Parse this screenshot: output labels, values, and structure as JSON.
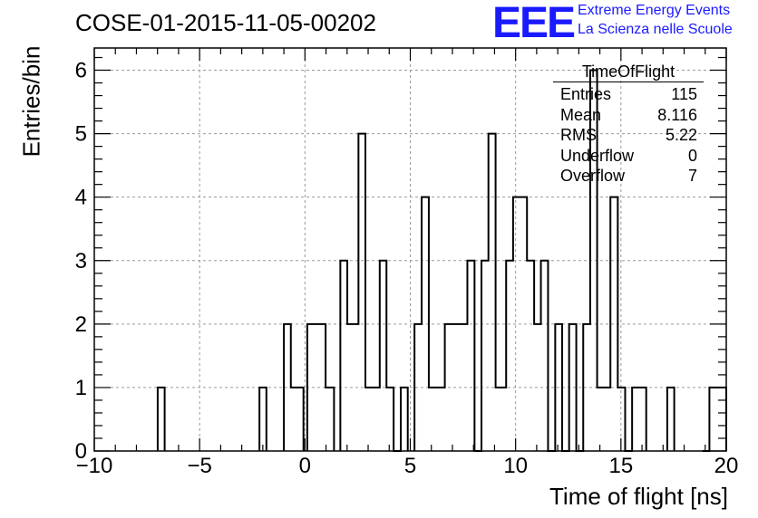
{
  "header": {
    "title": "COSE-01-2015-11-05-00202",
    "logo_text": "EEE",
    "brand_line1": "Extreme Energy Events",
    "brand_line2": "La Scienza nelle Scuole"
  },
  "stats_box": {
    "title": "TimeOfFlight",
    "rows": [
      {
        "label": "Entries",
        "value": "115"
      },
      {
        "label": "Mean",
        "value": "8.116"
      },
      {
        "label": "RMS",
        "value": "5.22"
      },
      {
        "label": "Underflow",
        "value": "0"
      },
      {
        "label": "Overflow",
        "value": "7"
      }
    ]
  },
  "colors": {
    "line": "#000000",
    "grid": "#9a9a9a",
    "logo": "#1a1aff"
  },
  "chart_data": {
    "type": "histogram",
    "title": "COSE-01-2015-11-05-00202",
    "xlabel": "Time of flight [ns]",
    "ylabel": "Entries/bin",
    "xlim": [
      -10,
      20
    ],
    "ylim": [
      0,
      6.35
    ],
    "bin_width": 0.3333,
    "x_ticks": [
      -10,
      -5,
      0,
      5,
      10,
      15,
      20
    ],
    "y_ticks": [
      0,
      1,
      2,
      3,
      4,
      5,
      6
    ],
    "grid": true,
    "bins": [
      {
        "x0": -6.99,
        "x1": -6.66,
        "y": 1
      },
      {
        "x0": -2.16,
        "x1": -1.83,
        "y": 1
      },
      {
        "x0": -1.0,
        "x1": -0.67,
        "y": 2
      },
      {
        "x0": -0.67,
        "x1": -0.07,
        "y": 1
      },
      {
        "x0": 0.11,
        "x1": 0.98,
        "y": 2
      },
      {
        "x0": 0.98,
        "x1": 1.38,
        "y": 1
      },
      {
        "x0": 1.68,
        "x1": 2.01,
        "y": 3
      },
      {
        "x0": 2.01,
        "x1": 2.54,
        "y": 2
      },
      {
        "x0": 2.54,
        "x1": 2.87,
        "y": 5
      },
      {
        "x0": 2.87,
        "x1": 3.55,
        "y": 1
      },
      {
        "x0": 3.55,
        "x1": 3.87,
        "y": 3
      },
      {
        "x0": 3.87,
        "x1": 4.21,
        "y": 1
      },
      {
        "x0": 4.21,
        "x1": 4.55,
        "y": 0
      },
      {
        "x0": 4.55,
        "x1": 4.88,
        "y": 1
      },
      {
        "x0": 5.2,
        "x1": 5.54,
        "y": 2
      },
      {
        "x0": 5.54,
        "x1": 5.88,
        "y": 4
      },
      {
        "x0": 5.88,
        "x1": 6.64,
        "y": 1
      },
      {
        "x0": 6.64,
        "x1": 7.71,
        "y": 2
      },
      {
        "x0": 7.71,
        "x1": 8.05,
        "y": 3
      },
      {
        "x0": 8.05,
        "x1": 8.38,
        "y": 0
      },
      {
        "x0": 8.38,
        "x1": 8.71,
        "y": 3
      },
      {
        "x0": 8.71,
        "x1": 9.05,
        "y": 5
      },
      {
        "x0": 9.05,
        "x1": 9.55,
        "y": 1
      },
      {
        "x0": 9.55,
        "x1": 9.88,
        "y": 3
      },
      {
        "x0": 9.88,
        "x1": 10.54,
        "y": 4
      },
      {
        "x0": 10.54,
        "x1": 10.88,
        "y": 3
      },
      {
        "x0": 10.88,
        "x1": 11.2,
        "y": 2
      },
      {
        "x0": 11.2,
        "x1": 11.54,
        "y": 3
      },
      {
        "x0": 11.54,
        "x1": 11.88,
        "y": 0
      },
      {
        "x0": 11.88,
        "x1": 12.21,
        "y": 2
      },
      {
        "x0": 12.21,
        "x1": 12.54,
        "y": 0
      },
      {
        "x0": 12.54,
        "x1": 12.88,
        "y": 2
      },
      {
        "x0": 12.88,
        "x1": 13.21,
        "y": 0
      },
      {
        "x0": 13.21,
        "x1": 13.54,
        "y": 2
      },
      {
        "x0": 13.54,
        "x1": 13.87,
        "y": 6
      },
      {
        "x0": 13.87,
        "x1": 14.5,
        "y": 1
      },
      {
        "x0": 14.5,
        "x1": 14.85,
        "y": 4
      },
      {
        "x0": 14.85,
        "x1": 15.2,
        "y": 1
      },
      {
        "x0": 15.2,
        "x1": 15.53,
        "y": 0
      },
      {
        "x0": 15.53,
        "x1": 16.2,
        "y": 1
      },
      {
        "x0": 17.2,
        "x1": 17.53,
        "y": 1
      },
      {
        "x0": 18.87,
        "x1": 19.2,
        "y": 0
      },
      {
        "x0": 19.2,
        "x1": 20.0,
        "y": 1
      }
    ]
  }
}
